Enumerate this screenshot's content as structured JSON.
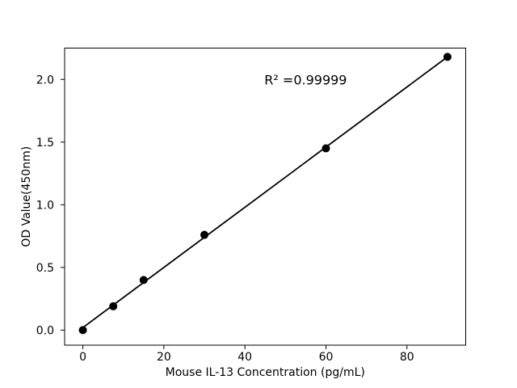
{
  "chart_data": {
    "type": "scatter",
    "title": "",
    "xlabel": "Mouse IL-13 Concentration (pg/mL)",
    "ylabel": "OD Value(450nm)",
    "x": [
      0,
      7.5,
      15,
      30,
      60,
      90
    ],
    "y": [
      0.0,
      0.19,
      0.4,
      0.76,
      1.45,
      2.18
    ],
    "fit_line": {
      "x": [
        0,
        90
      ],
      "y": [
        0.02,
        2.18
      ]
    },
    "annotation": {
      "text": "R² =0.99999",
      "x": 55,
      "y": 2.0
    },
    "xlim": [
      -4.5,
      94.5
    ],
    "ylim": [
      -0.12,
      2.25
    ],
    "xticks": {
      "values": [
        0,
        20,
        40,
        60,
        80
      ],
      "labels": [
        "0",
        "20",
        "40",
        "60",
        "80"
      ]
    },
    "yticks": {
      "values": [
        0,
        0.5,
        1,
        1.5,
        2
      ],
      "labels": [
        "0.0",
        "0.5",
        "1.0",
        "1.5",
        "2.0"
      ]
    },
    "grid": false,
    "legend": null,
    "marker": "circle",
    "marker_color": "#000000",
    "line_color": "#000000",
    "axis_color": "#000000",
    "background_color": "#ffffff"
  }
}
